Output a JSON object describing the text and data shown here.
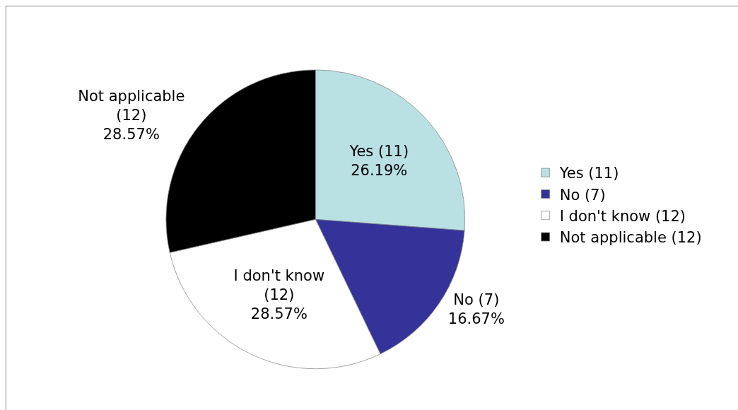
{
  "chart_data": {
    "type": "pie",
    "categories": [
      "Yes (11)",
      "No (7)",
      "I don't know (12)",
      "Not applicable (12)"
    ],
    "values": [
      26.19,
      16.67,
      28.57,
      28.57
    ],
    "value_labels": [
      "26.19%",
      "16.67%",
      "28.57%",
      "28.57%"
    ],
    "colors": [
      "#b9e0e3",
      "#333399",
      "#ffffff",
      "#000000"
    ],
    "legend": "right"
  }
}
